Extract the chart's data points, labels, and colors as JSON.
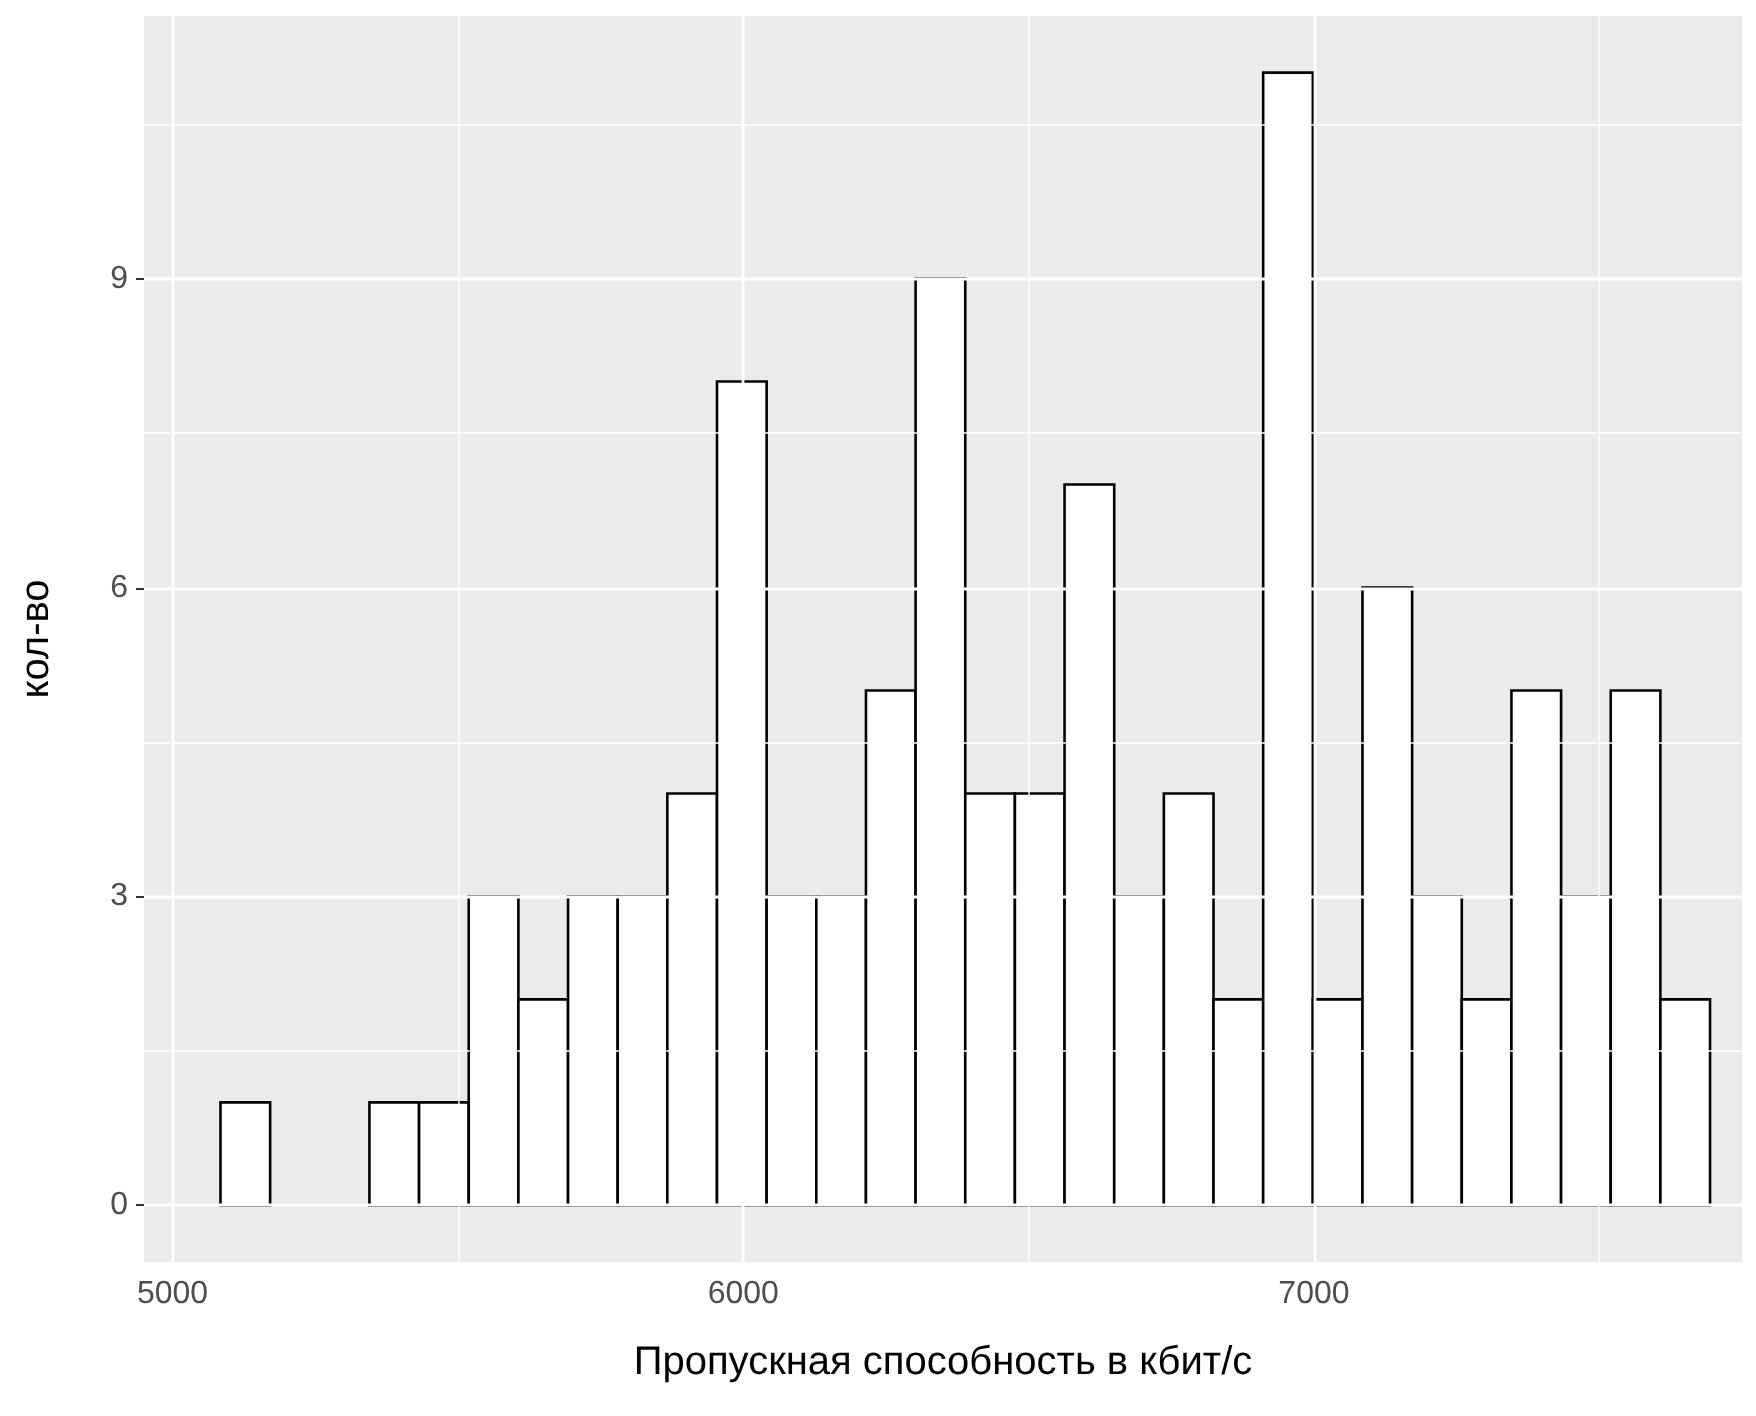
{
  "chart_data": {
    "type": "histogram",
    "xlabel": "Пропускная способность в кбит/с",
    "ylabel": "кол-во",
    "bins": [
      5084,
      5171,
      5258,
      5345,
      5432,
      5519,
      5606,
      5693,
      5780,
      5867,
      5954,
      6041,
      6128,
      6215,
      6302,
      6389,
      6476,
      6563,
      6650,
      6737,
      6824,
      6911,
      6998,
      7085,
      7172,
      7259,
      7346,
      7433,
      7520,
      7607,
      7694
    ],
    "values": [
      1,
      0,
      0,
      1,
      1,
      3,
      2,
      3,
      3,
      4,
      8,
      3,
      3,
      5,
      9,
      4,
      4,
      7,
      3,
      4,
      2,
      11,
      2,
      6,
      3,
      2,
      5,
      3,
      5,
      2
    ],
    "color": "#ffffff",
    "xlim": [
      4950,
      7750
    ],
    "xticks": [
      5000,
      {
        "value": 5500,
        "label": null
      },
      6000,
      {
        "value": 6500,
        "label": null
      },
      7000,
      {
        "value": 7500,
        "label": null
      }
    ],
    "ylim": [
      -0.55,
      11.55
    ],
    "yticks": [
      0,
      {
        "value": 1.5,
        "label": null
      },
      3,
      {
        "value": 4.5,
        "label": null
      },
      6,
      {
        "value": 7.5,
        "label": null
      },
      9,
      {
        "value": 10.5,
        "label": null
      }
    ],
    "grid": true
  }
}
